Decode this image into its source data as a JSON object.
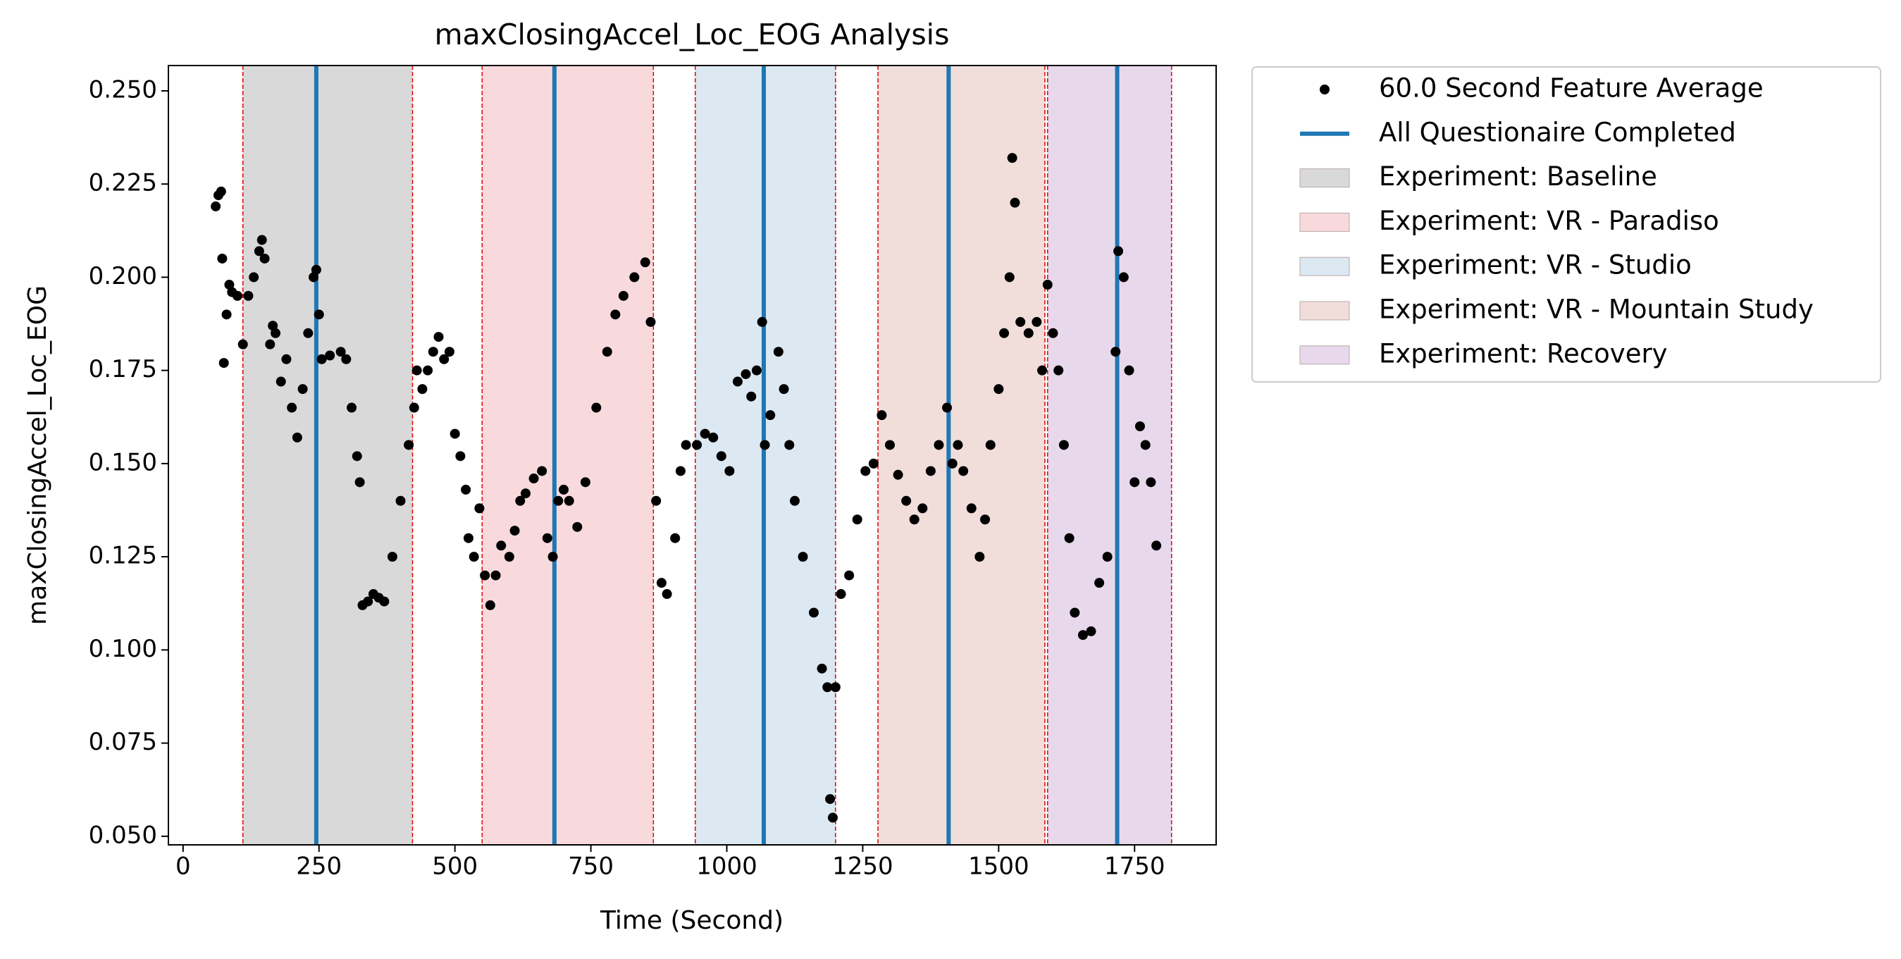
{
  "chart_data": {
    "type": "scatter",
    "title": "maxClosingAccel_Loc_EOG Analysis",
    "x_label": "Time (Second)",
    "y_label": "maxClosingAccel_Loc_EOG",
    "xlim": [
      -27,
      1900
    ],
    "ylim": [
      0.0477,
      0.2568
    ],
    "xticks": [
      0,
      250,
      500,
      750,
      1000,
      1250,
      1500,
      1750
    ],
    "yticks": [
      {
        "value": 0.05,
        "label": "0.050"
      },
      {
        "value": 0.075,
        "label": "0.075"
      },
      {
        "value": 0.1,
        "label": "0.100"
      },
      {
        "value": 0.125,
        "label": "0.125"
      },
      {
        "value": 0.15,
        "label": "0.150"
      },
      {
        "value": 0.175,
        "label": "0.175"
      },
      {
        "value": 0.2,
        "label": "0.200"
      },
      {
        "value": 0.225,
        "label": "0.225"
      },
      {
        "value": 0.25,
        "label": "0.250"
      }
    ],
    "series": [
      {
        "name": "60.0 Second Feature Average",
        "color": "#000000",
        "x": [
          60,
          65,
          70,
          72,
          75,
          80,
          85,
          90,
          100,
          110,
          120,
          130,
          140,
          145,
          150,
          160,
          165,
          170,
          180,
          190,
          200,
          210,
          220,
          230,
          240,
          245,
          250,
          255,
          270,
          290,
          300,
          310,
          320,
          325,
          330,
          340,
          350,
          360,
          370,
          385,
          400,
          415,
          425,
          430,
          440,
          450,
          460,
          470,
          480,
          490,
          500,
          510,
          520,
          525,
          535,
          545,
          555,
          565,
          575,
          585,
          600,
          610,
          620,
          630,
          645,
          660,
          670,
          680,
          690,
          700,
          710,
          725,
          740,
          760,
          780,
          795,
          810,
          830,
          850,
          860,
          870,
          880,
          890,
          905,
          915,
          925,
          945,
          960,
          975,
          990,
          1005,
          1020,
          1035,
          1045,
          1055,
          1065,
          1070,
          1080,
          1095,
          1105,
          1115,
          1125,
          1140,
          1160,
          1175,
          1185,
          1190,
          1195,
          1200,
          1210,
          1225,
          1240,
          1255,
          1270,
          1285,
          1300,
          1315,
          1330,
          1345,
          1360,
          1375,
          1390,
          1405,
          1415,
          1425,
          1435,
          1450,
          1465,
          1475,
          1485,
          1500,
          1510,
          1520,
          1525,
          1530,
          1540,
          1555,
          1570,
          1580,
          1590,
          1600,
          1610,
          1620,
          1630,
          1640,
          1655,
          1670,
          1685,
          1700,
          1715,
          1720,
          1730,
          1740,
          1750,
          1760,
          1770,
          1780,
          1790
        ],
        "values": [
          0.219,
          0.222,
          0.223,
          0.205,
          0.177,
          0.19,
          0.198,
          0.196,
          0.195,
          0.182,
          0.195,
          0.2,
          0.207,
          0.21,
          0.205,
          0.182,
          0.187,
          0.185,
          0.172,
          0.178,
          0.165,
          0.157,
          0.17,
          0.185,
          0.2,
          0.202,
          0.19,
          0.178,
          0.179,
          0.18,
          0.178,
          0.165,
          0.152,
          0.145,
          0.112,
          0.113,
          0.115,
          0.114,
          0.113,
          0.125,
          0.14,
          0.155,
          0.165,
          0.175,
          0.17,
          0.175,
          0.18,
          0.184,
          0.178,
          0.18,
          0.158,
          0.152,
          0.143,
          0.13,
          0.125,
          0.138,
          0.12,
          0.112,
          0.12,
          0.128,
          0.125,
          0.132,
          0.14,
          0.142,
          0.146,
          0.148,
          0.13,
          0.125,
          0.14,
          0.143,
          0.14,
          0.133,
          0.145,
          0.165,
          0.18,
          0.19,
          0.195,
          0.2,
          0.204,
          0.188,
          0.14,
          0.118,
          0.115,
          0.13,
          0.148,
          0.155,
          0.155,
          0.158,
          0.157,
          0.152,
          0.148,
          0.172,
          0.174,
          0.168,
          0.175,
          0.188,
          0.155,
          0.163,
          0.18,
          0.17,
          0.155,
          0.14,
          0.125,
          0.11,
          0.095,
          0.09,
          0.06,
          0.055,
          0.09,
          0.115,
          0.12,
          0.135,
          0.148,
          0.15,
          0.163,
          0.155,
          0.147,
          0.14,
          0.135,
          0.138,
          0.148,
          0.155,
          0.165,
          0.15,
          0.155,
          0.148,
          0.138,
          0.125,
          0.135,
          0.155,
          0.17,
          0.185,
          0.2,
          0.232,
          0.22,
          0.188,
          0.185,
          0.188,
          0.175,
          0.198,
          0.185,
          0.175,
          0.155,
          0.13,
          0.11,
          0.104,
          0.105,
          0.118,
          0.125,
          0.18,
          0.207,
          0.2,
          0.175,
          0.145,
          0.16,
          0.155,
          0.145,
          0.128
        ]
      }
    ],
    "vlines": {
      "name": "All Questionaire Completed",
      "color": "#1f77b4",
      "x": [
        245,
        683,
        1068,
        1408,
        1718
      ]
    },
    "spans": [
      {
        "name": "Experiment: Baseline",
        "color": "#d9d9d9",
        "start": 110,
        "end": 422
      },
      {
        "name": "Experiment: VR - Paradiso",
        "color": "#f9dadc",
        "start": 550,
        "end": 865
      },
      {
        "name": "Experiment: VR - Studio",
        "color": "#dce8f2",
        "start": 942,
        "end": 1200
      },
      {
        "name": "Experiment: VR - Mountain Study",
        "color": "#f1dedb",
        "start": 1278,
        "end": 1585
      },
      {
        "name": "Experiment: Recovery",
        "color": "#e8d8ec",
        "start": 1590,
        "end": 1818
      }
    ],
    "span_edge_color": "#e00000"
  }
}
